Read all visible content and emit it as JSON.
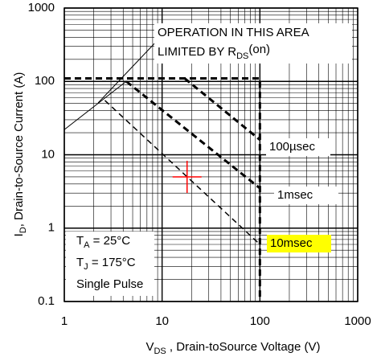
{
  "chart_data": {
    "type": "line",
    "log_x": true,
    "log_y": true,
    "grid": true,
    "minor_grid": true,
    "x_label": [
      "V",
      "DS",
      " , Drain-toSource Voltage (V)"
    ],
    "y_label": [
      "I",
      "D",
      ",  Drain-to-Source Current (A)"
    ],
    "xlim": [
      1,
      1000
    ],
    "xticks": [
      1,
      10,
      100,
      1000
    ],
    "ylim": [
      0.1,
      1000
    ],
    "yticks": [
      0.1,
      1,
      10,
      100,
      1000
    ],
    "limit_lines": [
      {
        "x": [
          1,
          4.3
        ],
        "y": [
          22,
          100
        ],
        "style": "solid-thin"
      },
      {
        "x": [
          1,
          100,
          100
        ],
        "y": [
          110,
          110,
          0.1
        ],
        "style": "dash-thick"
      }
    ],
    "series": [
      {
        "name": "100µsec",
        "x": [
          17,
          100
        ],
        "values": [
          110,
          16
        ],
        "style": "dash-thick",
        "color": "#000000"
      },
      {
        "name": "1msec",
        "x": [
          4.3,
          100
        ],
        "values": [
          100,
          3.5
        ],
        "style": "dash-thick",
        "color": "#000000"
      },
      {
        "name": "10msec",
        "x": [
          2.6,
          100
        ],
        "values": [
          55,
          0.6
        ],
        "style": "dash-thin",
        "color": "#000000",
        "highlight": "#ffff00"
      }
    ],
    "marker": {
      "x": 18,
      "y": 5,
      "color": "#ff0000"
    },
    "annotations": {
      "operation": [
        "OPERATION IN THIS AREA",
        "LIMITED BY R",
        "DS",
        "(on)"
      ],
      "conditions": [
        [
          "T",
          "A",
          " = 25°C"
        ],
        [
          "T",
          "J",
          " = 175°C"
        ],
        [
          "Single Pulse"
        ]
      ]
    }
  }
}
